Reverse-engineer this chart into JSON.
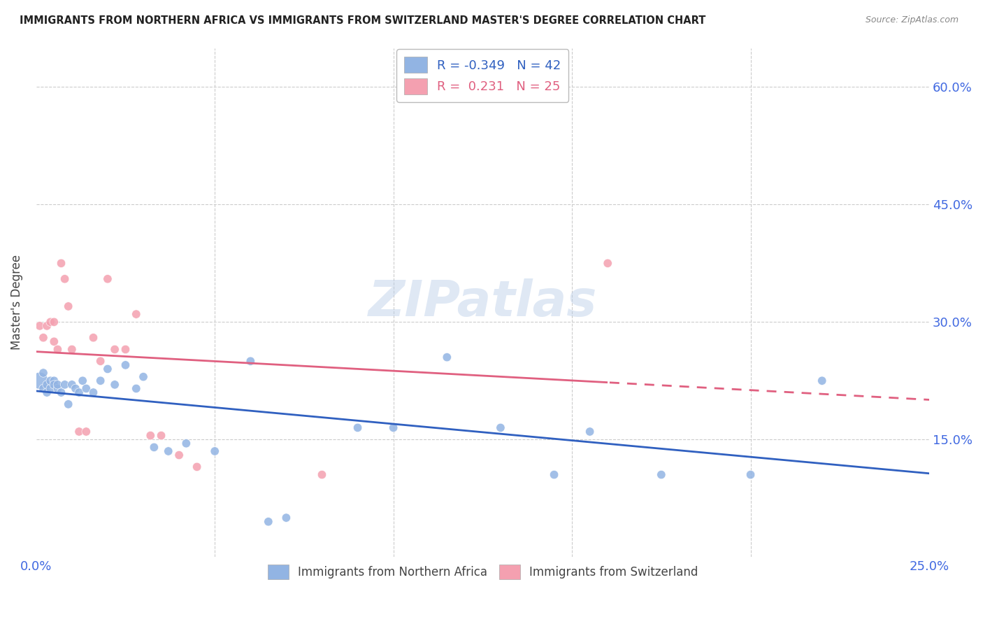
{
  "title": "IMMIGRANTS FROM NORTHERN AFRICA VS IMMIGRANTS FROM SWITZERLAND MASTER'S DEGREE CORRELATION CHART",
  "source": "Source: ZipAtlas.com",
  "ylabel": "Master's Degree",
  "xlim": [
    0.0,
    0.25
  ],
  "ylim": [
    0.0,
    0.65
  ],
  "yticks": [
    0.15,
    0.3,
    0.45,
    0.6
  ],
  "ytick_labels": [
    "15.0%",
    "30.0%",
    "45.0%",
    "60.0%"
  ],
  "xtick_labels": [
    "0.0%",
    "25.0%"
  ],
  "xtick_pos": [
    0.0,
    0.25
  ],
  "blue_color": "#92B4E3",
  "pink_color": "#F4A0B0",
  "blue_line_color": "#3060C0",
  "pink_line_color": "#E06080",
  "watermark": "ZIPatlas",
  "legend_r_blue": "-0.349",
  "legend_n_blue": "42",
  "legend_r_pink": "0.231",
  "legend_n_pink": "25",
  "blue_x": [
    0.001,
    0.002,
    0.002,
    0.003,
    0.003,
    0.004,
    0.004,
    0.005,
    0.005,
    0.006,
    0.006,
    0.007,
    0.008,
    0.009,
    0.01,
    0.011,
    0.012,
    0.013,
    0.014,
    0.016,
    0.018,
    0.02,
    0.022,
    0.025,
    0.028,
    0.03,
    0.033,
    0.037,
    0.042,
    0.05,
    0.06,
    0.065,
    0.07,
    0.09,
    0.1,
    0.115,
    0.13,
    0.145,
    0.155,
    0.175,
    0.2,
    0.22
  ],
  "blue_y": [
    0.225,
    0.235,
    0.215,
    0.22,
    0.21,
    0.215,
    0.225,
    0.225,
    0.22,
    0.215,
    0.22,
    0.21,
    0.22,
    0.195,
    0.22,
    0.215,
    0.21,
    0.225,
    0.215,
    0.21,
    0.225,
    0.24,
    0.22,
    0.245,
    0.215,
    0.23,
    0.14,
    0.135,
    0.145,
    0.135,
    0.25,
    0.045,
    0.05,
    0.165,
    0.165,
    0.255,
    0.165,
    0.105,
    0.16,
    0.105,
    0.105,
    0.225
  ],
  "blue_sizes": [
    300,
    80,
    80,
    80,
    80,
    80,
    80,
    80,
    80,
    80,
    80,
    80,
    80,
    80,
    80,
    80,
    80,
    80,
    80,
    80,
    80,
    80,
    80,
    80,
    80,
    80,
    80,
    80,
    80,
    80,
    80,
    80,
    80,
    80,
    80,
    80,
    80,
    80,
    80,
    80,
    80,
    80
  ],
  "pink_x": [
    0.001,
    0.002,
    0.003,
    0.004,
    0.005,
    0.005,
    0.006,
    0.007,
    0.008,
    0.009,
    0.01,
    0.012,
    0.014,
    0.016,
    0.018,
    0.02,
    0.022,
    0.025,
    0.028,
    0.032,
    0.035,
    0.04,
    0.045,
    0.08,
    0.16
  ],
  "pink_y": [
    0.295,
    0.28,
    0.295,
    0.3,
    0.275,
    0.3,
    0.265,
    0.375,
    0.355,
    0.32,
    0.265,
    0.16,
    0.16,
    0.28,
    0.25,
    0.355,
    0.265,
    0.265,
    0.31,
    0.155,
    0.155,
    0.13,
    0.115,
    0.105,
    0.375
  ],
  "pink_sizes": [
    80,
    80,
    80,
    80,
    80,
    80,
    80,
    80,
    80,
    80,
    80,
    80,
    80,
    80,
    80,
    80,
    80,
    80,
    80,
    80,
    80,
    80,
    80,
    80,
    80
  ],
  "grid_color": "#cccccc",
  "tick_color": "#4169E1",
  "label_color": "#444444"
}
